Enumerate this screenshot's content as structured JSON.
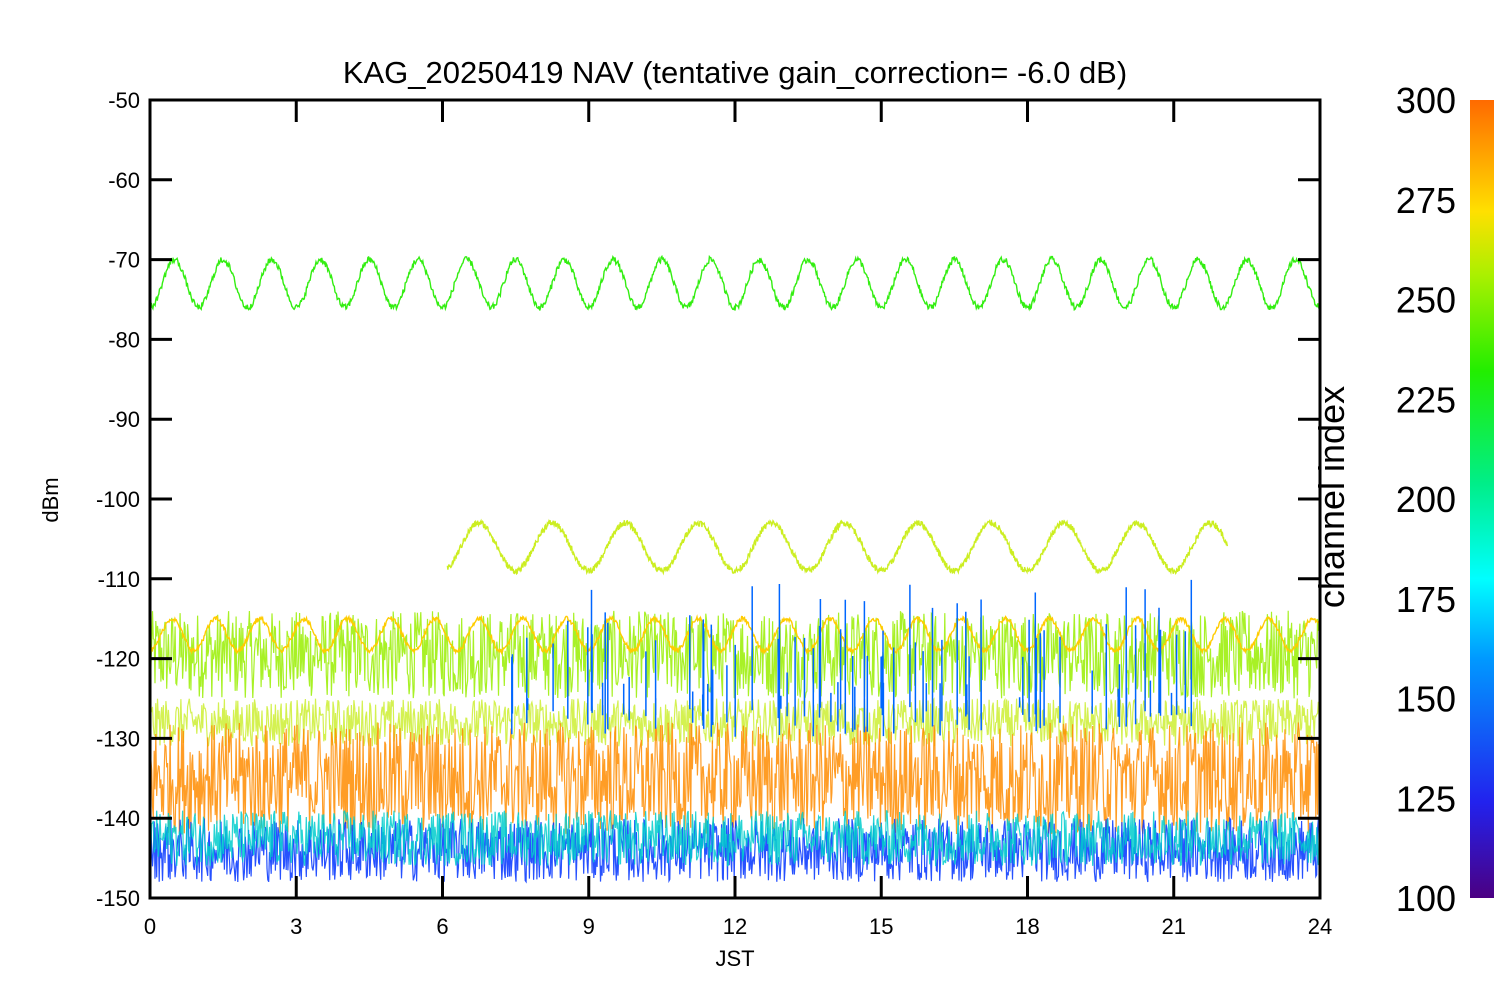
{
  "chart_data": {
    "type": "line",
    "title": "KAG_20250419 NAV (tentative gain_correction= -6.0 dB)",
    "xlabel": "JST",
    "ylabel": "dBm",
    "xlim": [
      0,
      24
    ],
    "ylim": [
      -150,
      -50
    ],
    "xticks": [
      "0",
      "3",
      "6",
      "9",
      "12",
      "15",
      "18",
      "21",
      "24"
    ],
    "yticks": [
      "-50",
      "-60",
      "-70",
      "-80",
      "-90",
      "-100",
      "-110",
      "-120",
      "-130",
      "-140",
      "-150"
    ],
    "grid": false,
    "colorbar": {
      "label": "channel index",
      "range": [
        100,
        300
      ],
      "ticks": [
        "300",
        "275",
        "250",
        "225",
        "200",
        "175",
        "150",
        "125",
        "100"
      ]
    },
    "series": [
      {
        "channel": 245,
        "color": "#33ee11",
        "x_range": [
          0,
          24
        ],
        "mean": -73,
        "amplitude": 3,
        "period_h": 1.0,
        "noise": 0.4
      },
      {
        "channel": 265,
        "color": "#ccee22",
        "x_range": [
          6.1,
          22.1
        ],
        "mean": -106,
        "amplitude": 3,
        "period_h": 1.5,
        "noise": 0.4
      },
      {
        "channel": 258,
        "color": "#99ee00",
        "x_range": [
          0,
          24
        ],
        "mean": -118,
        "band_low": -125,
        "band_high": -114,
        "noise_band": true
      },
      {
        "channel": 275,
        "color": "#ffcc00",
        "x_range": [
          0,
          24
        ],
        "mean": -117,
        "amplitude": 2,
        "period_h": 0.9,
        "noise": 0.3
      },
      {
        "channel": 262,
        "color": "#ccee33",
        "x_range": [
          0,
          24
        ],
        "mean": -128,
        "band_low": -131,
        "band_high": -125,
        "noise_band": true
      },
      {
        "channel": 290,
        "color": "#ff8c00",
        "x_range": [
          0,
          24
        ],
        "mean": -135,
        "band_low": -142,
        "band_high": -128,
        "noise_band": true
      },
      {
        "channel": 130,
        "color": "#0033ff",
        "x_range": [
          0,
          24
        ],
        "mean": -143,
        "band_low": -148,
        "band_high": -140,
        "noise_band": true
      },
      {
        "channel": 180,
        "color": "#00cccc",
        "x_range": [
          0,
          24
        ],
        "mean": -142,
        "band_low": -146,
        "band_high": -139,
        "noise_band": true
      },
      {
        "channel": 150,
        "color": "#0066ff",
        "x_range": [
          7.4,
          21.5
        ],
        "mean": -120,
        "spikes": true
      }
    ]
  }
}
